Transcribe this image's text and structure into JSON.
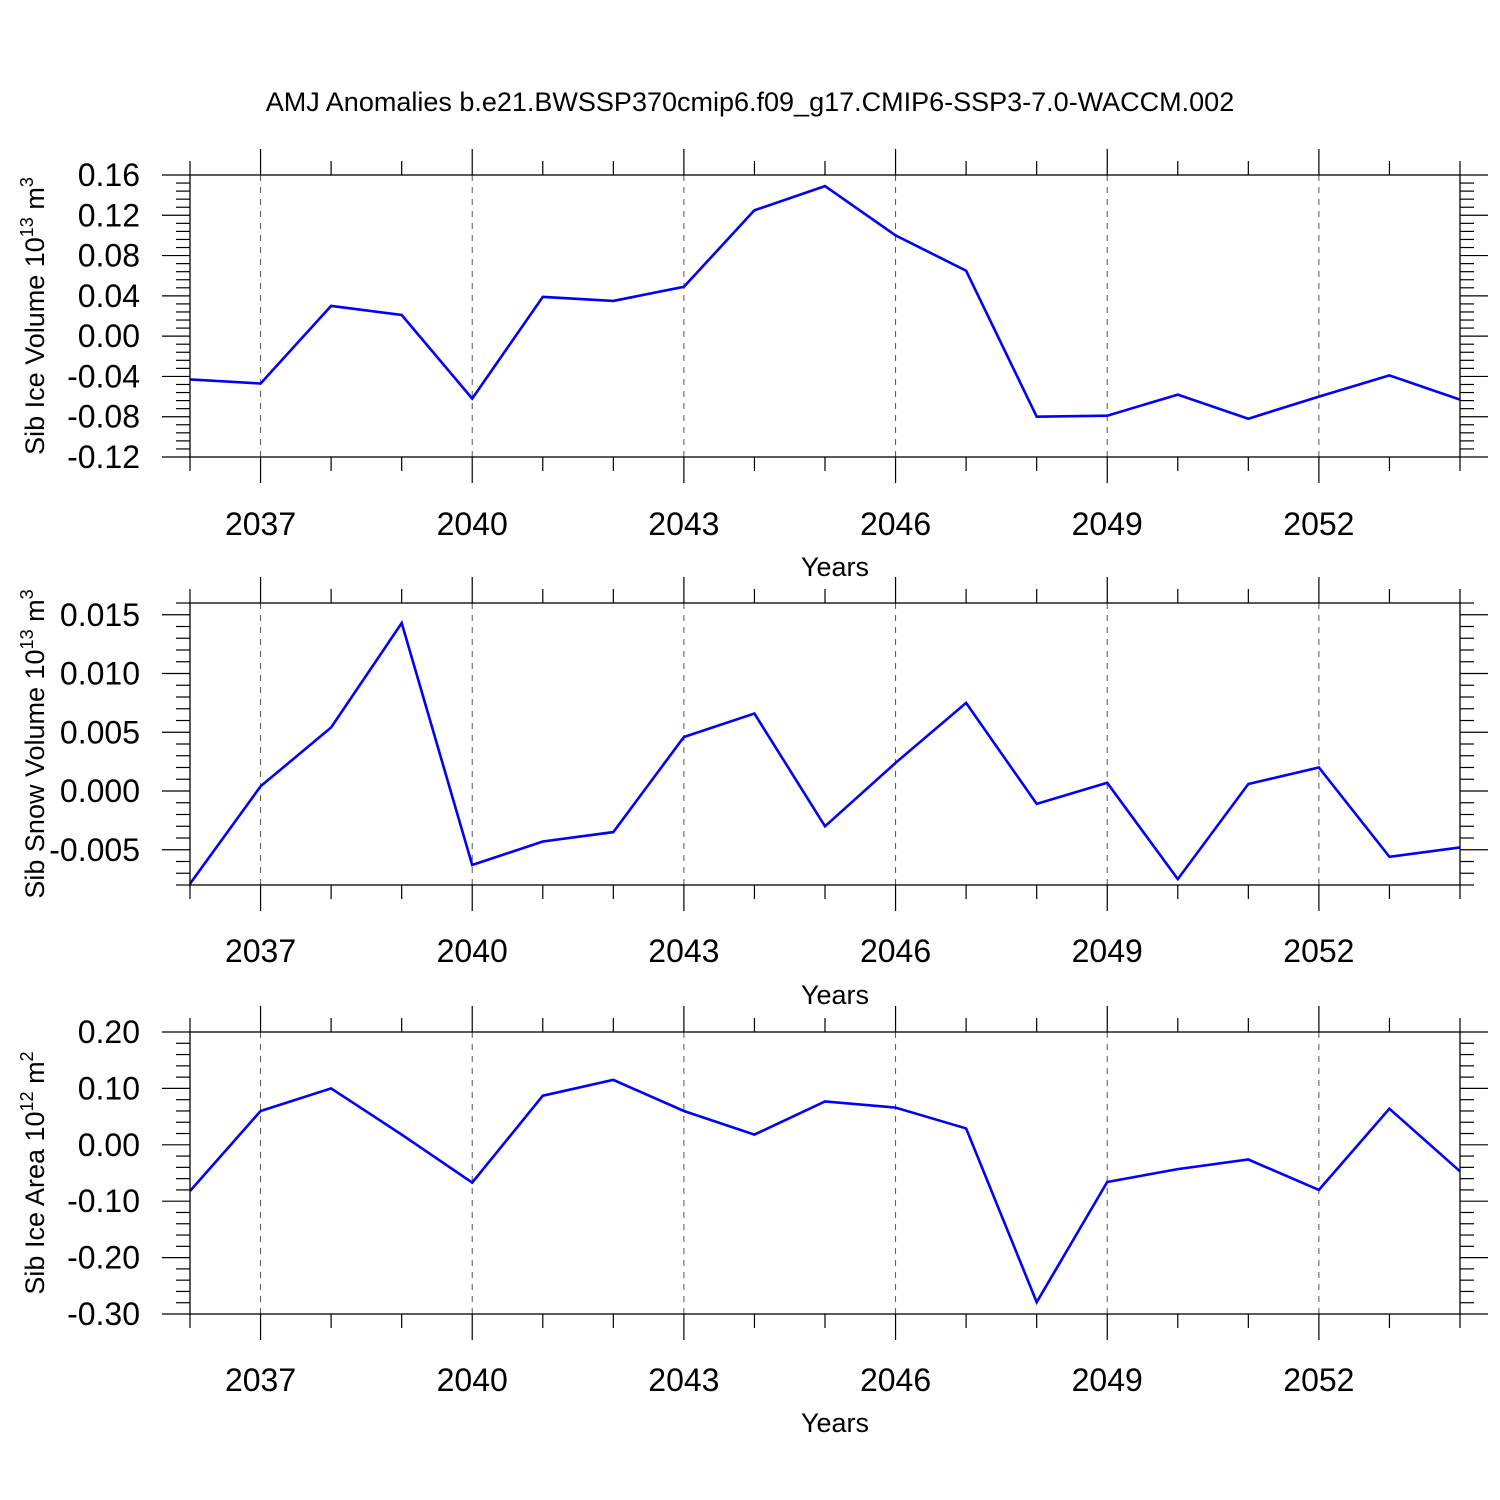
{
  "title": "AMJ Anomalies b.e21.BWSSP370cmip6.f09_g17.CMIP6-SSP3-7.0-WACCM.002",
  "colors": {
    "series": "#0000ff",
    "axis": "#000000",
    "grid": "#555555"
  },
  "chart_data": [
    {
      "type": "line",
      "ylabel": "Sib Ice Volume",
      "ylabel_unit_base": "10",
      "ylabel_unit_exp": "13",
      "ylabel_unit": "m",
      "ylabel_unit_unit_exp": "3",
      "xlabel": "Years",
      "xlim": [
        2036,
        2054
      ],
      "ylim": [
        -0.12,
        0.16
      ],
      "xticks": [
        2037,
        2040,
        2043,
        2046,
        2049,
        2052
      ],
      "xtick_labels": [
        "2037",
        "2040",
        "2043",
        "2046",
        "2049",
        "2052"
      ],
      "yticks": [
        -0.12,
        -0.08,
        -0.04,
        0.0,
        0.04,
        0.08,
        0.12,
        0.16
      ],
      "ytick_labels": [
        "-0.12",
        "-0.08",
        "-0.04",
        "0.00",
        "0.04",
        "0.08",
        "0.12",
        "0.16"
      ],
      "ygrid": false,
      "xgrid": true,
      "series": [
        {
          "name": "Sib Ice Volume",
          "x": [
            2036,
            2037,
            2038,
            2039,
            2040,
            2041,
            2042,
            2043,
            2044,
            2045,
            2046,
            2047,
            2048,
            2049,
            2050,
            2051,
            2052,
            2053,
            2054
          ],
          "values": [
            -0.043,
            -0.047,
            0.03,
            0.021,
            -0.062,
            0.039,
            0.035,
            0.049,
            0.125,
            0.149,
            0.1,
            0.065,
            -0.08,
            -0.079,
            -0.058,
            -0.082,
            -0.06,
            -0.039,
            -0.063
          ]
        }
      ]
    },
    {
      "type": "line",
      "ylabel": "Sib Snow Volume",
      "ylabel_unit_base": "10",
      "ylabel_unit_exp": "13",
      "ylabel_unit": "m",
      "ylabel_unit_unit_exp": "3",
      "xlabel": "Years",
      "xlim": [
        2036,
        2054
      ],
      "ylim": [
        -0.008,
        0.016
      ],
      "xticks": [
        2037,
        2040,
        2043,
        2046,
        2049,
        2052
      ],
      "xtick_labels": [
        "2037",
        "2040",
        "2043",
        "2046",
        "2049",
        "2052"
      ],
      "yticks": [
        -0.005,
        0.0,
        0.005,
        0.01,
        0.015
      ],
      "ytick_labels": [
        "-0.005",
        "0.000",
        "0.005",
        "0.010",
        "0.015"
      ],
      "xgrid": true,
      "series": [
        {
          "name": "Sib Snow Volume",
          "x": [
            2036,
            2037,
            2038,
            2039,
            2040,
            2041,
            2042,
            2043,
            2044,
            2045,
            2046,
            2047,
            2048,
            2049,
            2050,
            2051,
            2052,
            2053,
            2054
          ],
          "values": [
            -0.0079,
            0.0004,
            0.0054,
            0.0143,
            -0.0063,
            -0.0043,
            -0.0035,
            0.0046,
            0.0066,
            -0.003,
            0.0024,
            0.0075,
            -0.0011,
            0.0007,
            -0.0075,
            0.0006,
            0.002,
            -0.0056,
            -0.0048
          ]
        }
      ]
    },
    {
      "type": "line",
      "ylabel": "Sib Ice Area",
      "ylabel_unit_base": "10",
      "ylabel_unit_exp": "12",
      "ylabel_unit": "m",
      "ylabel_unit_unit_exp": "2",
      "xlabel": "Years",
      "xlim": [
        2036,
        2054
      ],
      "ylim": [
        -0.3,
        0.2
      ],
      "xticks": [
        2037,
        2040,
        2043,
        2046,
        2049,
        2052
      ],
      "xtick_labels": [
        "2037",
        "2040",
        "2043",
        "2046",
        "2049",
        "2052"
      ],
      "yticks": [
        -0.3,
        -0.2,
        -0.1,
        0.0,
        0.1,
        0.2
      ],
      "ytick_labels": [
        "-0.30",
        "-0.20",
        "-0.10",
        "0.00",
        "0.10",
        "0.20"
      ],
      "xgrid": true,
      "series": [
        {
          "name": "Sib Ice Area",
          "x": [
            2036,
            2037,
            2038,
            2039,
            2040,
            2041,
            2042,
            2043,
            2044,
            2045,
            2046,
            2047,
            2048,
            2049,
            2050,
            2051,
            2052,
            2053,
            2054
          ],
          "values": [
            -0.082,
            0.06,
            0.1,
            0.018,
            -0.067,
            0.087,
            0.115,
            0.06,
            0.018,
            0.077,
            0.066,
            0.029,
            -0.279,
            -0.066,
            -0.043,
            -0.026,
            -0.08,
            0.064,
            -0.047
          ]
        }
      ]
    }
  ]
}
